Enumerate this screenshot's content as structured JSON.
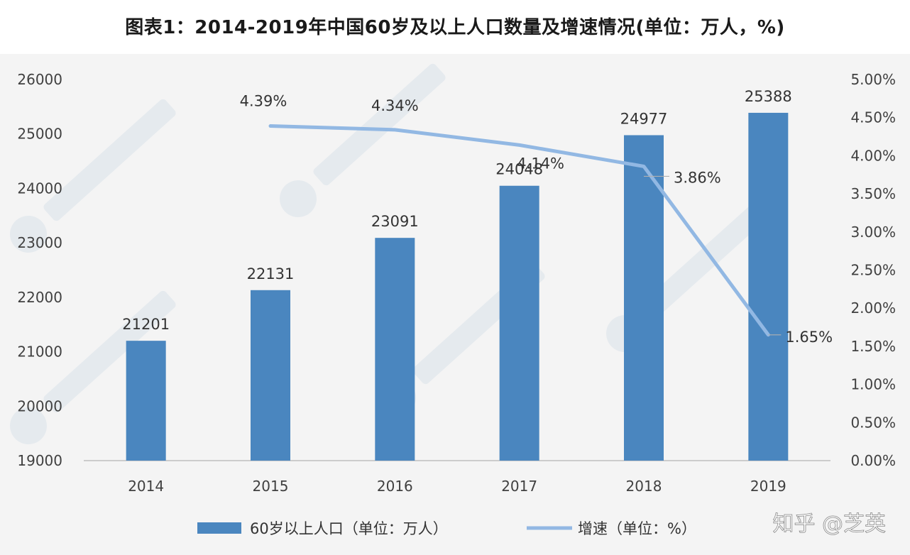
{
  "title": "图表1：2014-2019年中国60岁及以上人口数量及增速情况(单位：万人，%)",
  "watermark": "知乎 @芝英",
  "chart_data": {
    "type": "bar",
    "categories": [
      "2014",
      "2015",
      "2016",
      "2017",
      "2018",
      "2019"
    ],
    "series": [
      {
        "name": "60岁以上人口（单位：万人）",
        "type": "bar",
        "axis": "left",
        "color": "#4a86bf",
        "values": [
          21201,
          22131,
          23091,
          24048,
          24977,
          25388
        ],
        "labels": [
          "21201",
          "22131",
          "23091",
          "24048",
          "24977",
          "25388"
        ]
      },
      {
        "name": "增速（单位：%）",
        "type": "line",
        "axis": "right",
        "color": "#92b8e3",
        "values": [
          null,
          4.39,
          4.34,
          4.14,
          3.86,
          1.65
        ],
        "labels": [
          null,
          "4.39%",
          "4.34%",
          "4.14%",
          "3.86%",
          "1.65%"
        ]
      }
    ],
    "y_left": {
      "range": [
        19000,
        26000
      ],
      "ticks": [
        "19000",
        "20000",
        "21000",
        "22000",
        "23000",
        "24000",
        "25000",
        "26000"
      ]
    },
    "y_right": {
      "range": [
        0,
        5
      ],
      "ticks": [
        "0.00%",
        "0.50%",
        "1.00%",
        "1.50%",
        "2.00%",
        "2.50%",
        "3.00%",
        "3.50%",
        "4.00%",
        "4.50%",
        "5.00%"
      ]
    },
    "grid": false,
    "legend_position": "bottom"
  }
}
